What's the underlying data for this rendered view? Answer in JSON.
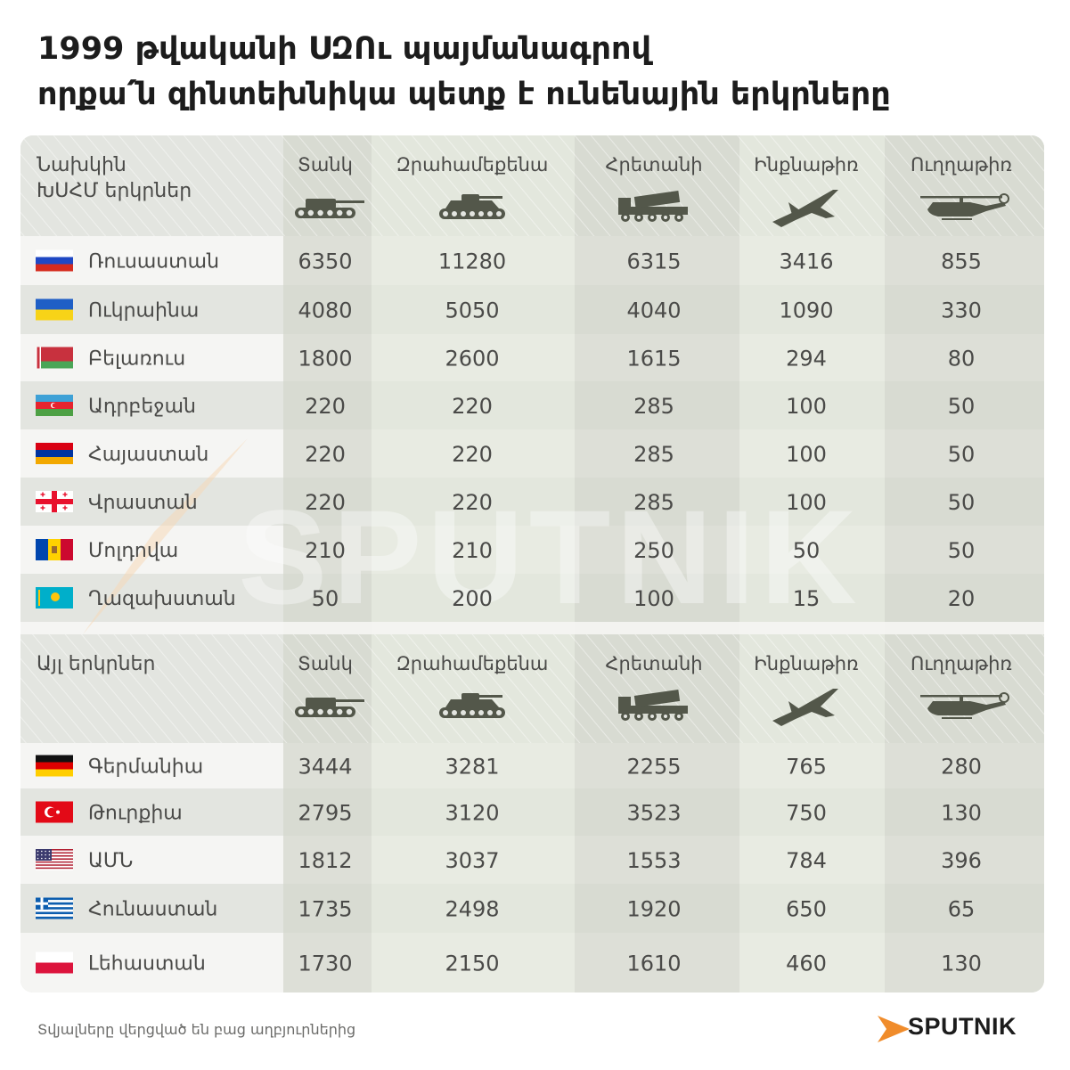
{
  "title_line1": "1999 թվականի ՍԶՈւ պայմանագրով",
  "title_line2": "որքա՛ն զինտեխնիկա պետք է ունենային երկրները",
  "footer": "Տվյալները վերցված են բաց աղբյուրներից",
  "brand": "SPUTNIK",
  "watermark": "SPUTNIK",
  "colors": {
    "header_bg": "#e3e5e0",
    "row_white": "#f5f5f3",
    "row_gray": "#e3e5e0",
    "col_light": "#e3e7dc",
    "col_dark": "#d4d7cd",
    "icon": "#53574a",
    "text": "#4a4a48",
    "accent": "#f08c2b"
  },
  "chart_data": {
    "type": "table",
    "columns": [
      "Տանկ",
      "Զրահամեքենա",
      "Հրետանի",
      "Ինքնաթիռ",
      "Ուղղաթիռ"
    ],
    "column_icons": [
      "tank-icon",
      "armored-vehicle-icon",
      "artillery-icon",
      "jet-icon",
      "helicopter-icon"
    ],
    "groups": [
      {
        "header": "Նախկին ԽՍՀՄ երկրներ",
        "header_lines": [
          "Նախկին",
          "ԽՍՀՄ երկրներ"
        ],
        "rows": [
          {
            "country": "Ռուսաստան",
            "flag": "russia",
            "values": [
              6350,
              11280,
              6315,
              3416,
              855
            ]
          },
          {
            "country": "Ուկրաինա",
            "flag": "ukraine",
            "values": [
              4080,
              5050,
              4040,
              1090,
              330
            ]
          },
          {
            "country": "Բելառուս",
            "flag": "belarus",
            "values": [
              1800,
              2600,
              1615,
              294,
              80
            ]
          },
          {
            "country": "Ադրբեջան",
            "flag": "azerbaijan",
            "values": [
              220,
              220,
              285,
              100,
              50
            ]
          },
          {
            "country": "Հայաստան",
            "flag": "armenia",
            "values": [
              220,
              220,
              285,
              100,
              50
            ]
          },
          {
            "country": "Վրաստան",
            "flag": "georgia",
            "values": [
              220,
              220,
              285,
              100,
              50
            ]
          },
          {
            "country": "Մոլդովա",
            "flag": "moldova",
            "values": [
              210,
              210,
              250,
              50,
              50
            ]
          },
          {
            "country": "Ղազախստան",
            "flag": "kazakhstan",
            "values": [
              50,
              200,
              100,
              15,
              20
            ]
          }
        ]
      },
      {
        "header": "Այլ երկրներ",
        "header_lines": [
          "Այլ երկրներ"
        ],
        "rows": [
          {
            "country": "Գերմանիա",
            "flag": "germany",
            "values": [
              3444,
              3281,
              2255,
              765,
              280
            ]
          },
          {
            "country": "Թուրքիա",
            "flag": "turkey",
            "values": [
              2795,
              3120,
              3523,
              750,
              130
            ]
          },
          {
            "country": "ԱՄՆ",
            "flag": "usa",
            "values": [
              1812,
              3037,
              1553,
              784,
              396
            ]
          },
          {
            "country": "Հունաստան",
            "flag": "greece",
            "values": [
              1735,
              2498,
              1920,
              650,
              65
            ]
          },
          {
            "country": "Լեհաստան",
            "flag": "poland",
            "values": [
              1730,
              2150,
              1610,
              460,
              130
            ]
          }
        ]
      }
    ]
  }
}
